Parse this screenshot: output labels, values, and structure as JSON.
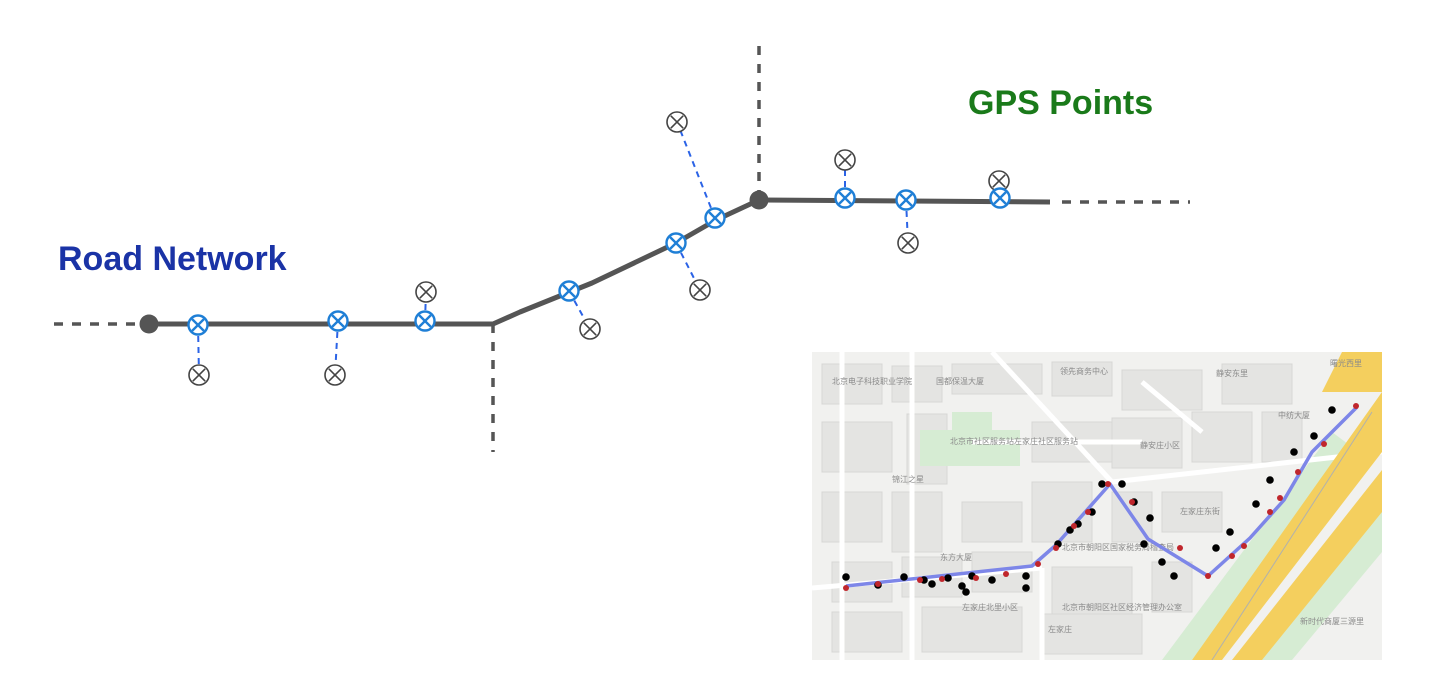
{
  "labels": {
    "road_network": "Road Network",
    "gps_points": "GPS Points"
  },
  "colors": {
    "road": "#555555",
    "road_label": "#1a33a6",
    "gps_label": "#1a7a1a",
    "matched_point": "#1f7fd6",
    "projection_dash": "#2b63e6",
    "raw_point": "#444444",
    "map_route": "#7d86e8",
    "map_gps_dot": "#000000",
    "map_matched_dot": "#c0262c",
    "map_highway": "#f4cf5e",
    "map_green": "#d6ecd3",
    "map_bg": "#f1f1ef"
  },
  "icons": {
    "matched_point": "circle-x-icon",
    "raw_point": "circle-x-icon",
    "road_node": "filled-circle-icon"
  },
  "map": {
    "place_labels": [
      "北京电子科技职业学院",
      "国都保温大厦",
      "领先商务中心",
      "静安东里",
      "北京市社区服务站左家庄社区服务站",
      "静安庄小区",
      "中纺大厦",
      "锦江之星",
      "左家庄东街",
      "北京市朝阳区国家税务局稽查局",
      "东方大厦",
      "左家庄北里小区",
      "北京市朝阳区社区经济管理办公室",
      "新时代商厦三源里",
      "曙光西里",
      "左家庄"
    ]
  }
}
